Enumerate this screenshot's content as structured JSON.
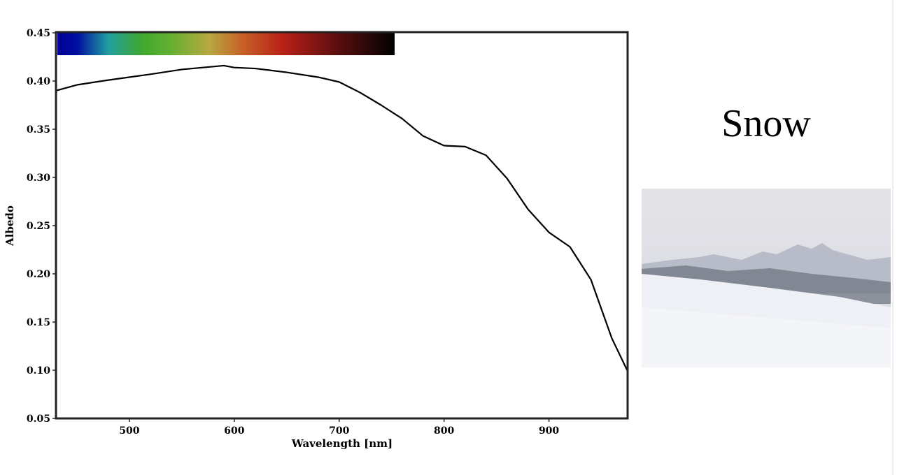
{
  "chart_data": {
    "type": "line",
    "x_label": "Wavelength [nm]",
    "y_label": "Albedo",
    "x": [
      430,
      450,
      480,
      520,
      550,
      580,
      590,
      600,
      620,
      650,
      680,
      700,
      720,
      740,
      760,
      780,
      800,
      820,
      840,
      860,
      880,
      900,
      920,
      940,
      960,
      975
    ],
    "series": [
      {
        "color": "#000000",
        "values": [
          0.39,
          0.396,
          0.401,
          0.407,
          0.412,
          0.415,
          0.416,
          0.414,
          0.413,
          0.409,
          0.404,
          0.399,
          0.388,
          0.375,
          0.361,
          0.343,
          0.333,
          0.332,
          0.323,
          0.299,
          0.267,
          0.243,
          0.228,
          0.194,
          0.133,
          0.099
        ]
      }
    ],
    "xlim": [
      430,
      975
    ],
    "xticks": [
      500,
      600,
      700,
      800,
      900
    ],
    "ylim": [
      0.05,
      0.45
    ],
    "yticks": [
      0.05,
      {
        "value": 0.1,
        "label": "0.10"
      },
      0.15,
      {
        "value": 0.2,
        "label": "0.20"
      },
      0.25,
      {
        "value": 0.3,
        "label": "0.30"
      },
      0.35,
      {
        "value": 0.4,
        "label": "0.40"
      },
      0.45
    ],
    "grid": false
  },
  "panel": {
    "label": "Snow"
  }
}
